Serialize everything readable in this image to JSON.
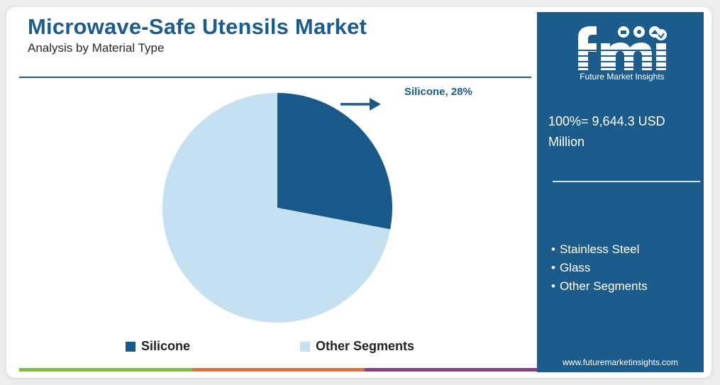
{
  "header": {
    "title": "Microwave-Safe Utensils Market",
    "subtitle": "Analysis by Material Type"
  },
  "chart_data": {
    "type": "pie",
    "title": "Microwave-Safe Utensils Market",
    "subtitle": "Analysis by Material Type",
    "categories": [
      "Silicone",
      "Other Segments"
    ],
    "values": [
      28,
      72
    ],
    "unit": "%",
    "data_labels": [
      "Silicone, 28%"
    ],
    "legend": [
      "Silicone",
      "Other Segments"
    ],
    "legend_position": "bottom",
    "colors": [
      "#1a5a8a",
      "#c5e0f1"
    ]
  },
  "side_panel": {
    "brand_name": "Future Market Insights",
    "total_label": "100%= 9,644.3 USD Million",
    "other_segments": [
      "Stainless Steel",
      "Glass",
      "Other Segments"
    ],
    "website": "www.futuremarketinsights.com",
    "background_color": "#1c5c8c"
  },
  "footer_bar_colors": [
    "#7cc042",
    "#e06f33",
    "#8e3a95"
  ]
}
